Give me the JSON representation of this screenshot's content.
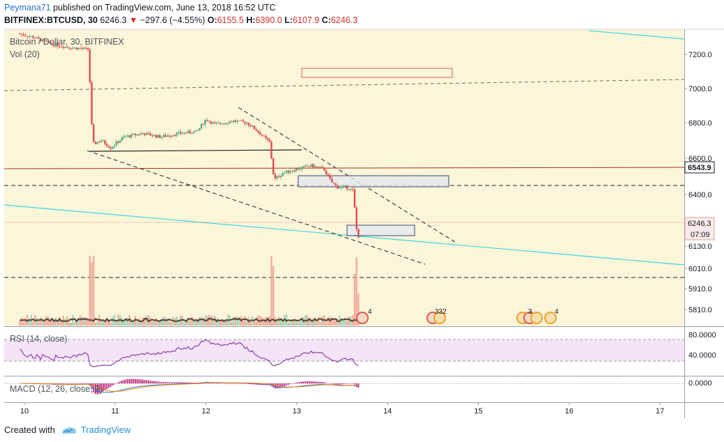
{
  "header": {
    "author": "Peymana71",
    "published": "published on TradingView.com, June 13, 2018 16:52 UTC",
    "symbol": "BITFINEX:BTCUSD, 30",
    "last": "6246.3",
    "change": "−297.6 (−4.55%)",
    "o_label": "O:",
    "o": "6155.5",
    "h_label": "H:",
    "h": "6390.0",
    "l_label": "L:",
    "l": "6107.9",
    "c_label": "C:",
    "c": "6246.3"
  },
  "footer": {
    "created_with": "Created with",
    "brand": "TradingView"
  },
  "chart_data": {
    "type": "candlestick",
    "title": "Bitcoin / Dollar, 30, BITFINEX",
    "volume_title": "Vol (20)",
    "rsi_title": "RSI (14, close)",
    "macd_title": "MACD (12, 26, close, 9)",
    "x_ticks": [
      "10",
      "11",
      "12",
      "13",
      "14",
      "15",
      "16",
      "17"
    ],
    "y_ticks": [
      "7200.0",
      "7000.0",
      "6800.0",
      "6600.0",
      "6400.0",
      "6130.0",
      "6010.0",
      "5910.0",
      "5810.0"
    ],
    "y_tick_values": [
      7200,
      7000,
      6800,
      6600,
      6400,
      6130,
      6010,
      5910,
      5810
    ],
    "price_labels": {
      "level": "6543.9",
      "last": "6246.3",
      "countdown": "07:09"
    },
    "rsi_ticks": [
      "80.0000",
      "40.0000"
    ],
    "macd_ticks": [
      "0.0000"
    ],
    "event_badges": [
      "4",
      "332",
      "3",
      "4"
    ],
    "horizontal_levels": [
      6543.9,
      6445,
      6246.3,
      5970
    ],
    "price_path": [
      [
        9.95,
        7320
      ],
      [
        10.1,
        7300
      ],
      [
        10.3,
        7260
      ],
      [
        10.5,
        7240
      ],
      [
        10.7,
        7230
      ],
      [
        10.72,
        7050
      ],
      [
        10.75,
        6680
      ],
      [
        10.85,
        6700
      ],
      [
        10.95,
        6660
      ],
      [
        11.1,
        6720
      ],
      [
        11.3,
        6740
      ],
      [
        11.5,
        6720
      ],
      [
        11.7,
        6740
      ],
      [
        11.9,
        6750
      ],
      [
        12.0,
        6820
      ],
      [
        12.1,
        6790
      ],
      [
        12.3,
        6810
      ],
      [
        12.45,
        6800
      ],
      [
        12.55,
        6760
      ],
      [
        12.7,
        6690
      ],
      [
        12.75,
        6480
      ],
      [
        12.85,
        6520
      ],
      [
        13.0,
        6540
      ],
      [
        13.15,
        6560
      ],
      [
        13.3,
        6540
      ],
      [
        13.38,
        6470
      ],
      [
        13.45,
        6440
      ],
      [
        13.55,
        6440
      ],
      [
        13.62,
        6420
      ],
      [
        13.66,
        6210
      ],
      [
        13.68,
        6180
      ]
    ]
  }
}
